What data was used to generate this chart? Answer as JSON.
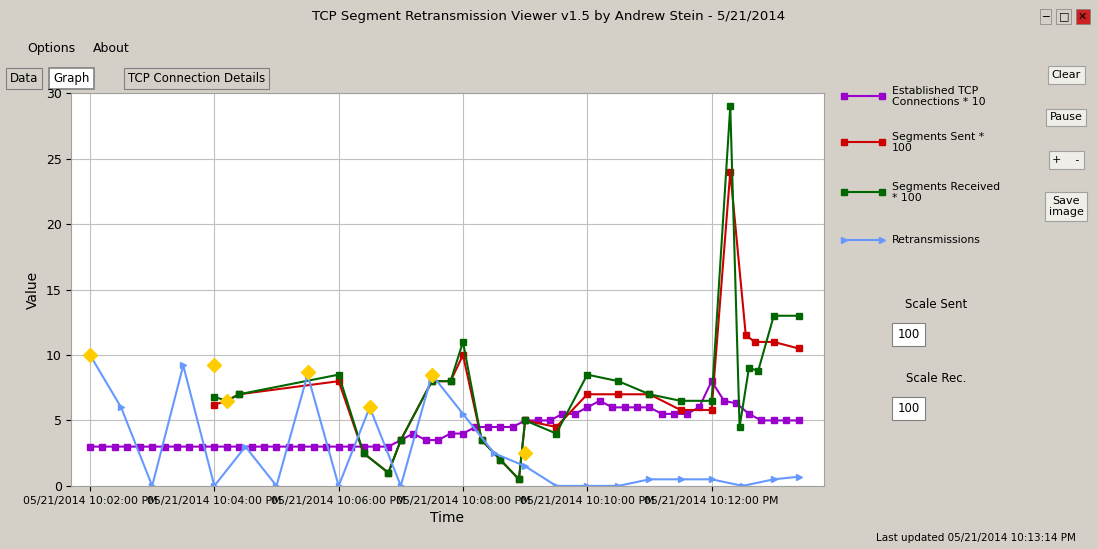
{
  "title": "TCP Segment Retransmission Viewer v1.5 by Andrew Stein - 5/21/2014",
  "xlabel": "Time",
  "ylabel": "Value",
  "ylim": [
    0,
    30
  ],
  "yticks": [
    0,
    5,
    10,
    15,
    20,
    25,
    30
  ],
  "x_labels": [
    "05/21/2014 10:02:00 PM",
    "05/21/2014 10:04:00 PM",
    "05/21/2014 10:06:00 PM",
    "05/21/2014 10:08:00 PM",
    "05/21/2014 10:10:00 PM",
    "05/21/2014 10:12:00 PM"
  ],
  "x_positions": [
    0,
    2,
    4,
    6,
    8,
    10
  ],
  "established_tcp_x": [
    0.0,
    0.2,
    0.4,
    0.6,
    0.8,
    1.0,
    1.2,
    1.4,
    1.6,
    1.8,
    2.0,
    2.2,
    2.4,
    2.6,
    2.8,
    3.0,
    3.2,
    3.4,
    3.6,
    3.8,
    4.0,
    4.2,
    4.4,
    4.6,
    4.8,
    5.0,
    5.2,
    5.4,
    5.6,
    5.8,
    6.0,
    6.2,
    6.4,
    6.6,
    6.8,
    7.0,
    7.2,
    7.4,
    7.6,
    7.8,
    8.0,
    8.2,
    8.4,
    8.6,
    8.8,
    9.0,
    9.2,
    9.4,
    9.6,
    9.8,
    10.0,
    10.2,
    10.4,
    10.6,
    10.8,
    11.0,
    11.2,
    11.4
  ],
  "established_tcp_y": [
    3.0,
    3.0,
    3.0,
    3.0,
    3.0,
    3.0,
    3.0,
    3.0,
    3.0,
    3.0,
    3.0,
    3.0,
    3.0,
    3.0,
    3.0,
    3.0,
    3.0,
    3.0,
    3.0,
    3.0,
    3.0,
    3.0,
    3.0,
    3.0,
    3.0,
    3.5,
    4.0,
    3.5,
    3.5,
    4.0,
    4.0,
    4.5,
    4.5,
    4.5,
    4.5,
    5.0,
    5.0,
    5.0,
    5.5,
    5.5,
    6.0,
    6.5,
    6.0,
    6.0,
    6.0,
    6.0,
    5.5,
    5.5,
    5.5,
    6.0,
    8.0,
    6.5,
    6.3,
    5.5,
    5.0,
    5.0,
    5.0,
    5.0
  ],
  "segments_sent_x": [
    2.0,
    2.2,
    2.4,
    4.0,
    4.4,
    4.8,
    5.0,
    5.5,
    5.8,
    6.0,
    6.3,
    6.6,
    6.9,
    7.0,
    7.5,
    8.0,
    8.5,
    9.0,
    9.5,
    10.0,
    10.3,
    10.55,
    10.7,
    11.0,
    11.4
  ],
  "segments_sent_y": [
    6.2,
    6.5,
    7.0,
    8.0,
    2.5,
    1.0,
    3.5,
    8.0,
    8.0,
    10.0,
    3.5,
    2.0,
    0.5,
    5.0,
    4.5,
    7.0,
    7.0,
    7.0,
    5.8,
    5.8,
    24.0,
    11.5,
    11.0,
    11.0,
    10.5
  ],
  "segments_received_x": [
    2.0,
    2.2,
    2.4,
    4.0,
    4.4,
    4.8,
    5.0,
    5.5,
    5.8,
    6.0,
    6.3,
    6.6,
    6.9,
    7.0,
    7.5,
    8.0,
    8.5,
    9.0,
    9.5,
    10.0,
    10.3,
    10.45,
    10.6,
    10.75,
    11.0,
    11.4
  ],
  "segments_received_y": [
    6.8,
    6.5,
    7.0,
    8.5,
    2.5,
    1.0,
    3.5,
    8.0,
    8.0,
    11.0,
    3.5,
    2.0,
    0.5,
    5.0,
    4.0,
    8.5,
    8.0,
    7.0,
    6.5,
    6.5,
    29.0,
    4.5,
    9.0,
    8.8,
    13.0,
    13.0
  ],
  "retransmissions_x": [
    0.0,
    0.5,
    1.0,
    1.5,
    2.0,
    2.5,
    3.0,
    3.5,
    4.0,
    4.5,
    5.0,
    5.5,
    6.0,
    6.5,
    7.0,
    7.5,
    8.0,
    8.5,
    9.0,
    9.5,
    10.0,
    10.5,
    11.0,
    11.4
  ],
  "retransmissions_y": [
    10.0,
    6.0,
    0.0,
    9.2,
    0.0,
    3.0,
    0.0,
    8.5,
    0.0,
    6.0,
    0.0,
    8.5,
    5.5,
    2.5,
    1.5,
    0.0,
    0.0,
    0.0,
    0.5,
    0.5,
    0.5,
    0.0,
    0.5,
    0.7
  ],
  "yellow_x": [
    0.0,
    2.0,
    2.2,
    3.5,
    4.5,
    5.5,
    7.0
  ],
  "yellow_y": [
    10.0,
    9.2,
    6.5,
    8.7,
    6.0,
    8.5,
    2.5
  ],
  "established_color": "#9900CC",
  "sent_color": "#CC0000",
  "received_color": "#006600",
  "retrans_color": "#6699FF",
  "yellow_color": "#FFCC00",
  "bg_color": "#D4D0C8",
  "plot_bg": "#FFFFFF",
  "grid_color": "#C0C0C0",
  "window_title": "TCP Segment Retransmission Viewer v1.5 by Andrew Stein - 5/21/2014",
  "status_bar": "Last updated 05/21/2014 10:13:14 PM",
  "legend_labels": [
    "Established TCP\nConnections * 10",
    "Segments Sent *\n100",
    "Segments Received\n* 100",
    "Retransmissions"
  ],
  "legend_colors": [
    "#9900CC",
    "#CC0000",
    "#006600",
    "#6699FF"
  ],
  "legend_markers": [
    "s",
    "s",
    "s",
    ">"
  ]
}
